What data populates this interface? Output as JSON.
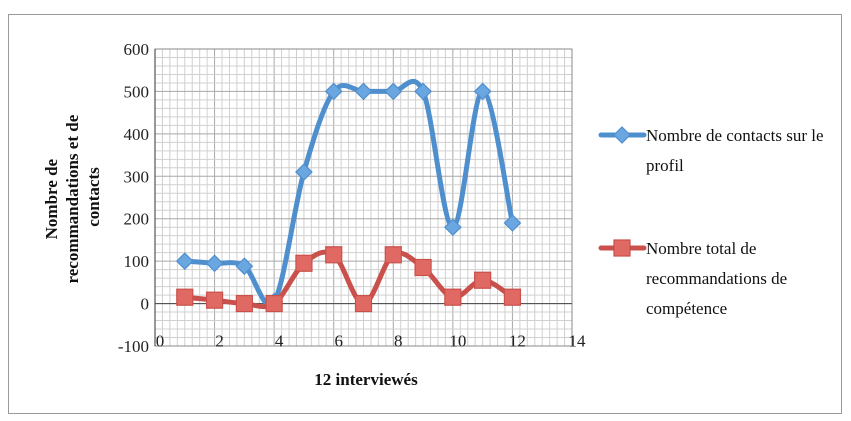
{
  "chart_data": {
    "type": "line",
    "title": "",
    "xlabel": "12 interviewés",
    "ylabel_lines": [
      "Nombre de",
      "recommandations et de",
      "contacts"
    ],
    "xlim": [
      0,
      14
    ],
    "ylim": [
      -100,
      600
    ],
    "xticks": [
      0,
      2,
      4,
      6,
      8,
      10,
      12,
      14
    ],
    "yticks": [
      -100,
      0,
      100,
      200,
      300,
      400,
      500,
      600
    ],
    "grid": true,
    "legend_position": "right",
    "series": [
      {
        "name": "Nombre de contacts sur le profil",
        "legend_lines": [
          "Nombre de contacts sur le",
          "profil"
        ],
        "marker": "diamond",
        "color": "#4f8fce",
        "marker_color": "#6aa6e0",
        "x": [
          1,
          2,
          3,
          4,
          5,
          6,
          7,
          8,
          9,
          10,
          11,
          12
        ],
        "y": [
          100,
          95,
          88,
          5,
          310,
          500,
          500,
          500,
          500,
          180,
          500,
          190
        ]
      },
      {
        "name": "Nombre total de recommandations de compétence",
        "legend_lines": [
          "Nombre total de",
          "recommandations de",
          "compétence"
        ],
        "marker": "square",
        "color": "#c9504b",
        "marker_color": "#e06a63",
        "x": [
          1,
          2,
          3,
          4,
          5,
          6,
          7,
          8,
          9,
          10,
          11,
          12
        ],
        "y": [
          15,
          8,
          0,
          0,
          95,
          115,
          0,
          115,
          85,
          15,
          55,
          15
        ]
      }
    ]
  }
}
